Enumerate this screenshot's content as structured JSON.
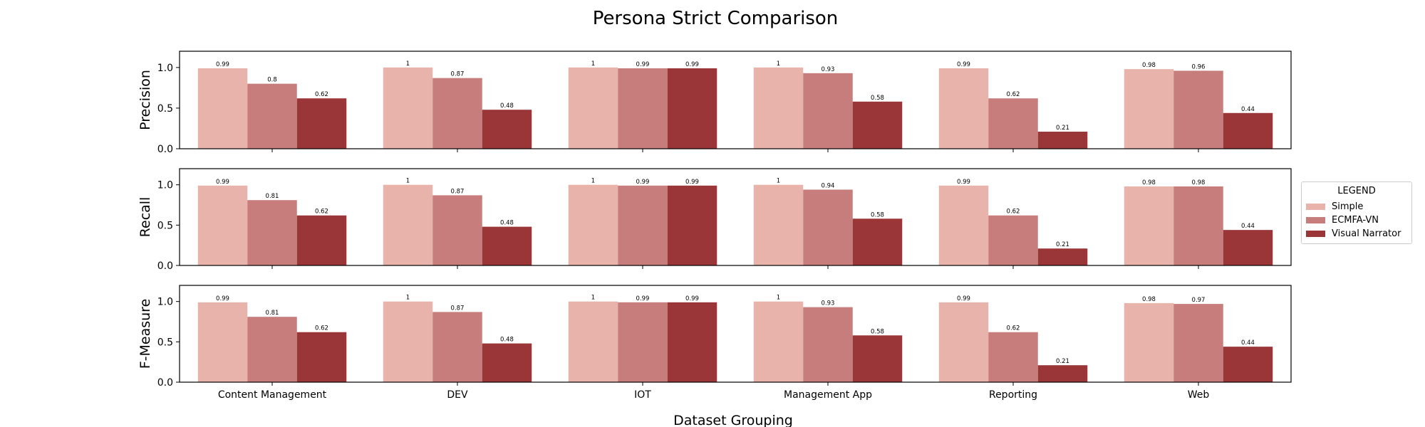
{
  "chart_data": {
    "type": "bar",
    "title": "Persona Strict Comparison",
    "xlabel": "Dataset Grouping",
    "categories": [
      "Content Management",
      "DEV",
      "IOT",
      "Management App",
      "Reporting",
      "Web"
    ],
    "ylim": [
      0,
      1.2
    ],
    "yticks": [
      "0.0",
      "0.5",
      "1.0"
    ],
    "legend": {
      "title": "LEGEND",
      "position": "right"
    },
    "series_names": [
      "Simple",
      "ECMFA-VN",
      "Visual Narrator"
    ],
    "colors": [
      "#e8b3aa",
      "#c67d7c",
      "#9b3638"
    ],
    "panels": [
      {
        "ylabel": "Precision",
        "series": [
          {
            "name": "Simple",
            "values": [
              0.99,
              1,
              1,
              1,
              0.99,
              0.98
            ]
          },
          {
            "name": "ECMFA-VN",
            "values": [
              0.8,
              0.87,
              0.99,
              0.93,
              0.62,
              0.96
            ]
          },
          {
            "name": "Visual Narrator",
            "values": [
              0.62,
              0.48,
              0.99,
              0.58,
              0.21,
              0.44
            ]
          }
        ]
      },
      {
        "ylabel": "Recall",
        "series": [
          {
            "name": "Simple",
            "values": [
              0.99,
              1,
              1,
              1,
              0.99,
              0.98
            ]
          },
          {
            "name": "ECMFA-VN",
            "values": [
              0.81,
              0.87,
              0.99,
              0.94,
              0.62,
              0.98
            ]
          },
          {
            "name": "Visual Narrator",
            "values": [
              0.62,
              0.48,
              0.99,
              0.58,
              0.21,
              0.44
            ]
          }
        ]
      },
      {
        "ylabel": "F-Measure",
        "series": [
          {
            "name": "Simple",
            "values": [
              0.99,
              1,
              1,
              1,
              0.99,
              0.98
            ]
          },
          {
            "name": "ECMFA-VN",
            "values": [
              0.81,
              0.87,
              0.99,
              0.93,
              0.62,
              0.97
            ]
          },
          {
            "name": "Visual Narrator",
            "values": [
              0.62,
              0.48,
              0.99,
              0.58,
              0.21,
              0.44
            ]
          }
        ]
      }
    ]
  }
}
